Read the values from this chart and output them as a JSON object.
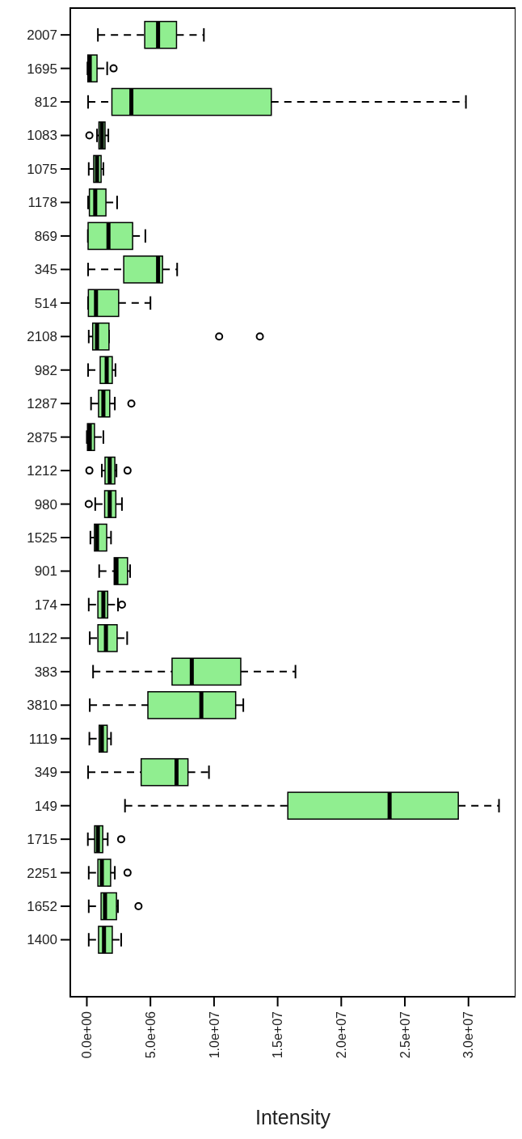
{
  "chart_data": {
    "type": "box",
    "orientation": "horizontal",
    "xlabel": "Intensity",
    "color": "#90ee90",
    "grid": false,
    "categories": [
      "2007",
      "1695",
      "812",
      "1083",
      "1075",
      "1178",
      "869",
      "345",
      "514",
      "2108",
      "982",
      "1287",
      "2875",
      "1212",
      "980",
      "1525",
      "901",
      "174",
      "1122",
      "383",
      "3810",
      "1119",
      "349",
      "149",
      "1715",
      "2251",
      "1652",
      "1400"
    ],
    "boxes": [
      {
        "low": 870000,
        "q1": 4550000,
        "median": 5600000,
        "q3": 7050000,
        "high": 9200000
      },
      {
        "low": 50000,
        "q1": 80000,
        "median": 230000,
        "q3": 800000,
        "high": 1600000,
        "outliers": [
          2100000
        ]
      },
      {
        "low": 100000,
        "q1": 1970000,
        "median": 3500000,
        "q3": 14500000,
        "high": 29800000
      },
      {
        "low": 800000,
        "q1": 950000,
        "median": 1180000,
        "q3": 1430000,
        "high": 1690000,
        "outliers": [
          200000
        ]
      },
      {
        "low": 150000,
        "q1": 540000,
        "median": 800000,
        "q3": 1120000,
        "high": 1300000
      },
      {
        "low": 100000,
        "q1": 200000,
        "median": 660000,
        "q3": 1500000,
        "high": 2380000
      },
      {
        "low": 80000,
        "q1": 100000,
        "median": 1700000,
        "q3": 3600000,
        "high": 4600000
      },
      {
        "low": 100000,
        "q1": 2900000,
        "median": 5600000,
        "q3": 5950000,
        "high": 7100000
      },
      {
        "low": 100000,
        "q1": 120000,
        "median": 720000,
        "q3": 2500000,
        "high": 5000000
      },
      {
        "low": 150000,
        "q1": 460000,
        "median": 800000,
        "q3": 1740000,
        "high": 1740000,
        "outliers": [
          10400000,
          13600000
        ]
      },
      {
        "low": 100000,
        "q1": 1050000,
        "median": 1560000,
        "q3": 2000000,
        "high": 2250000
      },
      {
        "low": 330000,
        "q1": 920000,
        "median": 1300000,
        "q3": 1800000,
        "high": 2200000,
        "outliers": [
          3500000
        ]
      },
      {
        "low": 0,
        "q1": 50000,
        "median": 230000,
        "q3": 600000,
        "high": 1300000
      },
      {
        "low": 1180000,
        "q1": 1430000,
        "median": 1800000,
        "q3": 2200000,
        "high": 2330000,
        "outliers": [
          200000,
          3200000
        ]
      },
      {
        "low": 660000,
        "q1": 1400000,
        "median": 1800000,
        "q3": 2280000,
        "high": 2760000,
        "outliers": [
          150000
        ]
      },
      {
        "low": 280000,
        "q1": 600000,
        "median": 800000,
        "q3": 1560000,
        "high": 1900000
      },
      {
        "low": 970000,
        "q1": 2150000,
        "median": 2330000,
        "q3": 3200000,
        "high": 3400000
      },
      {
        "low": 150000,
        "q1": 870000,
        "median": 1300000,
        "q3": 1640000,
        "high": 2450000,
        "outliers": [
          2760000
        ]
      },
      {
        "low": 230000,
        "q1": 870000,
        "median": 1500000,
        "q3": 2380000,
        "high": 3170000
      },
      {
        "low": 490000,
        "q1": 6700000,
        "median": 8250000,
        "q3": 12100000,
        "high": 16400000
      },
      {
        "low": 230000,
        "q1": 4800000,
        "median": 9000000,
        "q3": 11700000,
        "high": 12300000
      },
      {
        "low": 200000,
        "q1": 970000,
        "median": 1180000,
        "q3": 1600000,
        "high": 1900000
      },
      {
        "low": 100000,
        "q1": 4270000,
        "median": 7050000,
        "q3": 7950000,
        "high": 9600000
      },
      {
        "low": 3000000,
        "q1": 15800000,
        "median": 23800000,
        "q3": 29200000,
        "high": 32400000
      },
      {
        "low": 80000,
        "q1": 610000,
        "median": 870000,
        "q3": 1250000,
        "high": 1640000,
        "outliers": [
          2700000
        ]
      },
      {
        "low": 150000,
        "q1": 870000,
        "median": 1180000,
        "q3": 1870000,
        "high": 2200000,
        "outliers": [
          3200000
        ]
      },
      {
        "low": 150000,
        "q1": 1120000,
        "median": 1430000,
        "q3": 2330000,
        "high": 2450000,
        "outliers": [
          4060000
        ]
      },
      {
        "low": 150000,
        "q1": 920000,
        "median": 1350000,
        "q3": 2000000,
        "high": 2700000
      }
    ],
    "xlim": [
      -1300000,
      33700000
    ],
    "xticks": [
      {
        "value": 0,
        "label": "0.0e+00"
      },
      {
        "value": 5000000,
        "label": "5.0e+06"
      },
      {
        "value": 10000000,
        "label": "1.0e+07"
      },
      {
        "value": 15000000,
        "label": "1.5e+07"
      },
      {
        "value": 20000000,
        "label": "2.0e+07"
      },
      {
        "value": 25000000,
        "label": "2.5e+07"
      },
      {
        "value": 30000000,
        "label": "3.0e+07"
      }
    ]
  }
}
